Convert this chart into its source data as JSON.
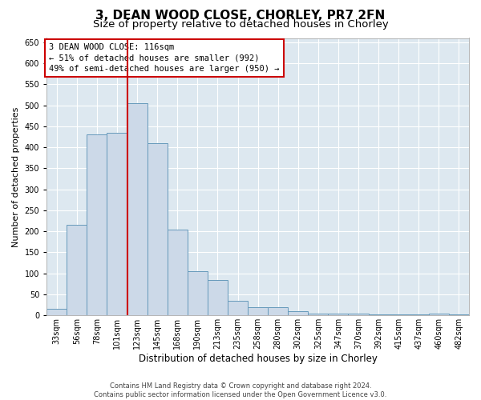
{
  "title": "3, DEAN WOOD CLOSE, CHORLEY, PR7 2FN",
  "subtitle": "Size of property relative to detached houses in Chorley",
  "xlabel": "Distribution of detached houses by size in Chorley",
  "ylabel": "Number of detached properties",
  "footer_line1": "Contains HM Land Registry data © Crown copyright and database right 2024.",
  "footer_line2": "Contains public sector information licensed under the Open Government Licence v3.0.",
  "bar_labels": [
    "33sqm",
    "56sqm",
    "78sqm",
    "101sqm",
    "123sqm",
    "145sqm",
    "168sqm",
    "190sqm",
    "213sqm",
    "235sqm",
    "258sqm",
    "280sqm",
    "302sqm",
    "325sqm",
    "347sqm",
    "370sqm",
    "392sqm",
    "415sqm",
    "437sqm",
    "460sqm",
    "482sqm"
  ],
  "bar_values": [
    15,
    215,
    430,
    435,
    505,
    410,
    205,
    105,
    85,
    35,
    20,
    20,
    10,
    5,
    5,
    5,
    2,
    2,
    2,
    5,
    2
  ],
  "bar_color": "#ccd9e8",
  "bar_edge_color": "#6699bb",
  "bg_color": "#dde8f0",
  "vline_color": "#cc0000",
  "vline_pos": 4,
  "annotation_text": "3 DEAN WOOD CLOSE: 116sqm\n← 51% of detached houses are smaller (992)\n49% of semi-detached houses are larger (950) →",
  "annotation_box_color": "#cc0000",
  "ylim": [
    0,
    660
  ],
  "yticks": [
    0,
    50,
    100,
    150,
    200,
    250,
    300,
    350,
    400,
    450,
    500,
    550,
    600,
    650
  ],
  "title_fontsize": 11,
  "subtitle_fontsize": 9.5,
  "ylabel_fontsize": 8,
  "xlabel_fontsize": 8.5,
  "tick_fontsize": 7,
  "annotation_fontsize": 7.5,
  "footer_fontsize": 6
}
